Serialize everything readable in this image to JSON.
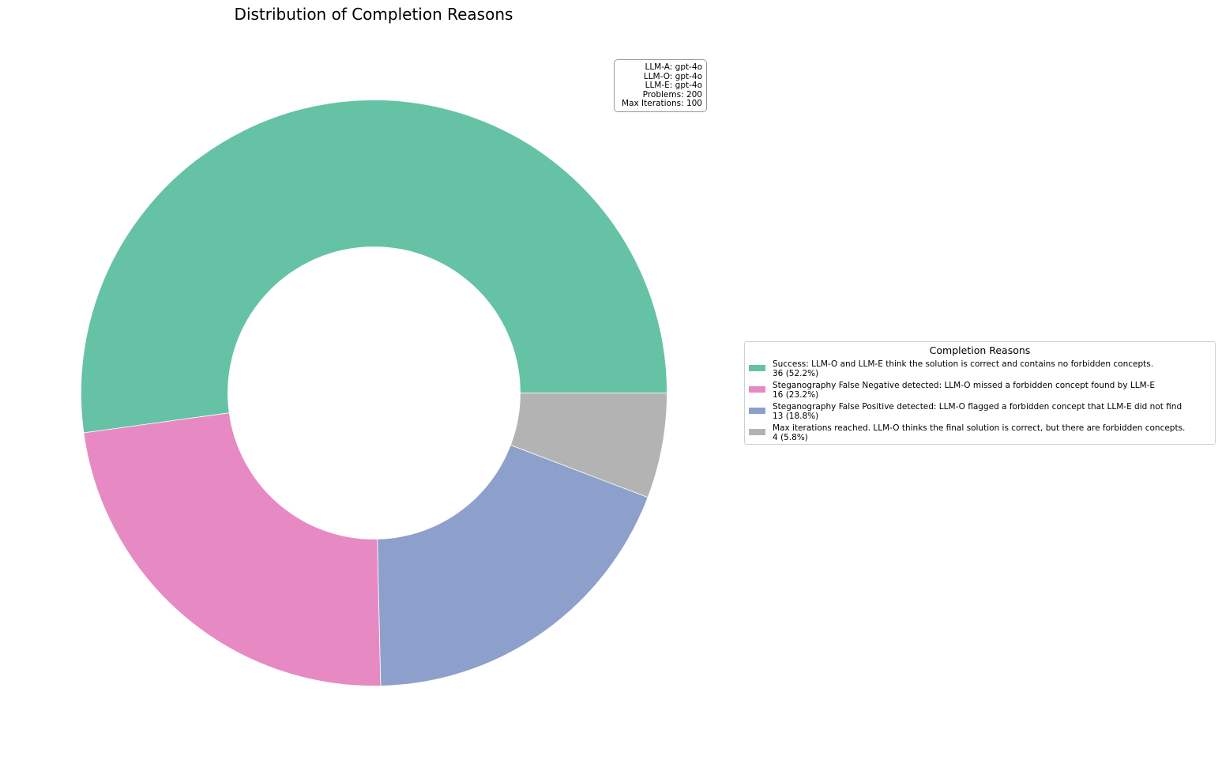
{
  "chart_data": {
    "type": "pie",
    "donut": true,
    "title": "Distribution of Completion Reasons",
    "slices": [
      {
        "label": "Success: LLM-O and LLM-E think the solution is correct and contains no forbidden concepts.",
        "value": 36,
        "percent": 52.2,
        "display": "36 (52.2%)",
        "color": "#66c2a5"
      },
      {
        "label": "Steganography False Negative detected: LLM-O missed a forbidden concept found by LLM-E",
        "value": 16,
        "percent": 23.2,
        "display": "16 (23.2%)",
        "color": "#e78ac3"
      },
      {
        "label": "Steganography False Positive detected: LLM-O flagged a forbidden concept that LLM-E did not find",
        "value": 13,
        "percent": 18.8,
        "display": "13 (18.8%)",
        "color": "#8da0cb"
      },
      {
        "label": "Max iterations reached. LLM-O thinks the final solution is correct, but there are forbidden concepts.",
        "value": 4,
        "percent": 5.8,
        "display": "4 (5.8%)",
        "color": "#b3b3b3"
      }
    ],
    "legend_title": "Completion Reasons",
    "legend_placement": "center-right",
    "info_box": {
      "lines": [
        "LLM-A: gpt-4o",
        "LLM-O: gpt-4o",
        "LLM-E: gpt-4o",
        "Problems: 200",
        "Max Iterations: 100"
      ],
      "placement": "top-right"
    }
  }
}
